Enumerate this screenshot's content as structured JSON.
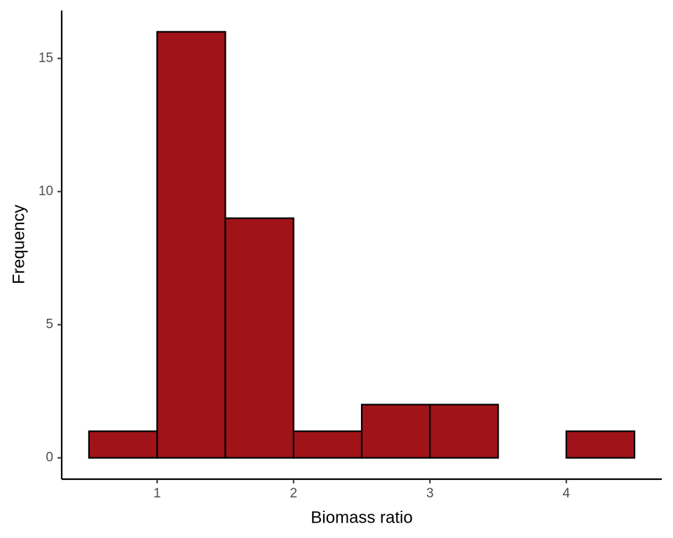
{
  "chart_data": {
    "type": "histogram",
    "x_label": "Biomass ratio",
    "y_label": "Frequency",
    "bins": [
      0.5,
      1,
      1.5,
      2,
      2.5,
      3,
      3.5,
      4,
      4.5
    ],
    "values": [
      1,
      16,
      9,
      1,
      2,
      2,
      0,
      1
    ],
    "color": "#a01319",
    "edge_color": "#000000",
    "xlim": [
      0.3,
      4.7
    ],
    "xticks": [
      1,
      2,
      3,
      4
    ],
    "ylim": [
      -0.8,
      16.8
    ],
    "yticks": [
      0,
      5,
      10,
      15
    ],
    "grid": false
  }
}
